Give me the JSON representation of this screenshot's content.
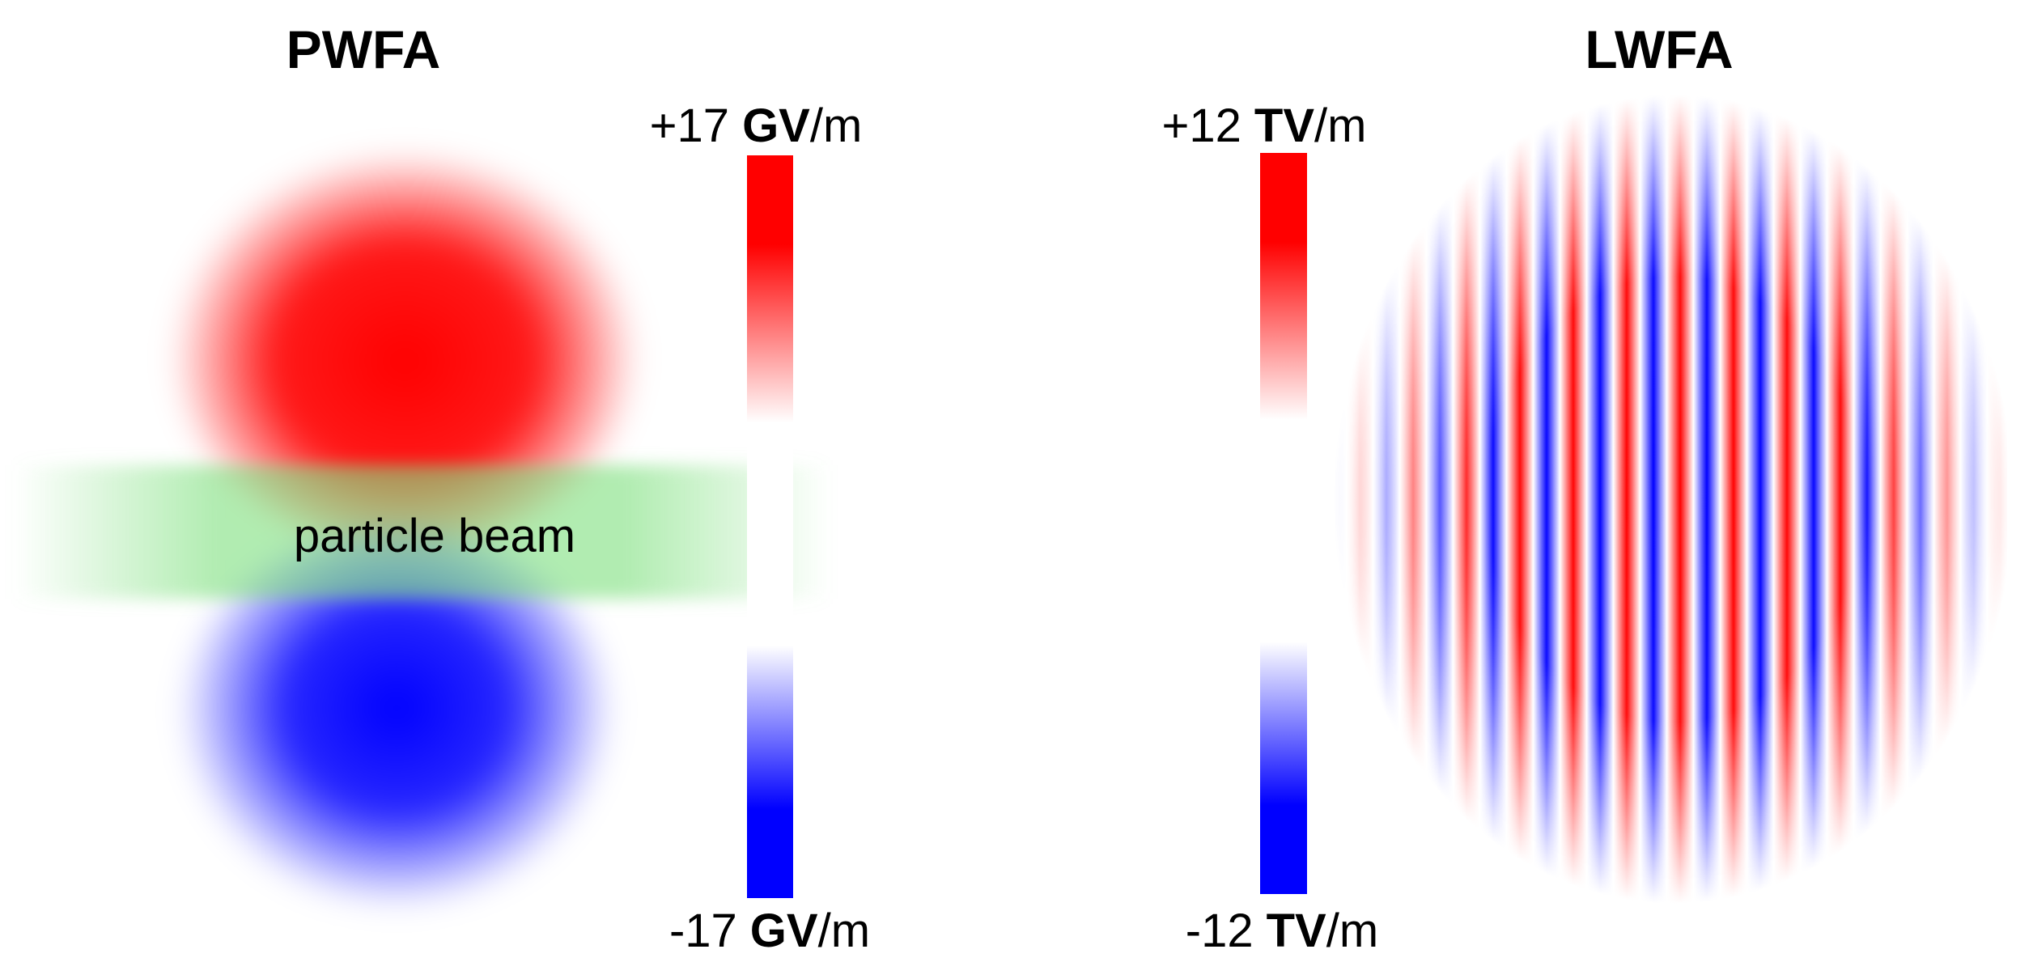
{
  "panels": [
    {
      "title": "PWFA",
      "colorbar": {
        "max": {
          "value": "+17",
          "unit": "GV",
          "suffix": "/m"
        },
        "min": {
          "value": "-17",
          "unit": "GV",
          "suffix": "/m"
        }
      },
      "annotation": "particle beam"
    },
    {
      "title": "LWFA",
      "colorbar": {
        "max": {
          "value": "+12",
          "unit": "TV",
          "suffix": "/m"
        },
        "min": {
          "value": "-12",
          "unit": "TV",
          "suffix": "/m"
        }
      }
    }
  ]
}
